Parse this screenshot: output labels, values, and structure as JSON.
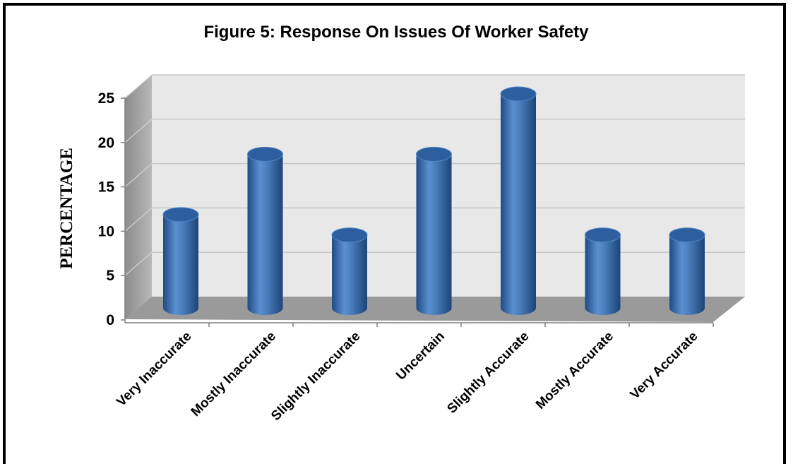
{
  "chart_data": {
    "type": "bar",
    "title": "Figure 5: Response On Issues Of Worker Safety",
    "ylabel": "PERCENTAGE",
    "xlabel": "",
    "categories": [
      "Very Inaccurate",
      "Mostly Inaccurate",
      "Slightly Inaccurate",
      "Uncertain",
      "Slightly Accurate",
      "Mostly Accurate",
      "Very Accurate"
    ],
    "values": [
      11.4,
      18.2,
      9.1,
      18.2,
      25.0,
      9.1,
      9.1
    ],
    "ylim": [
      0,
      25
    ],
    "yticks": [
      "0",
      "5",
      "10",
      "15",
      "20",
      "25"
    ],
    "grid": true,
    "legend": "none",
    "bar_style": "3d-cylinder",
    "colors": {
      "bar": "#4a7ebb",
      "wall": "#e8e8e8",
      "floor": "#9a9a9a",
      "side_wall": "#a6a6a6"
    }
  }
}
